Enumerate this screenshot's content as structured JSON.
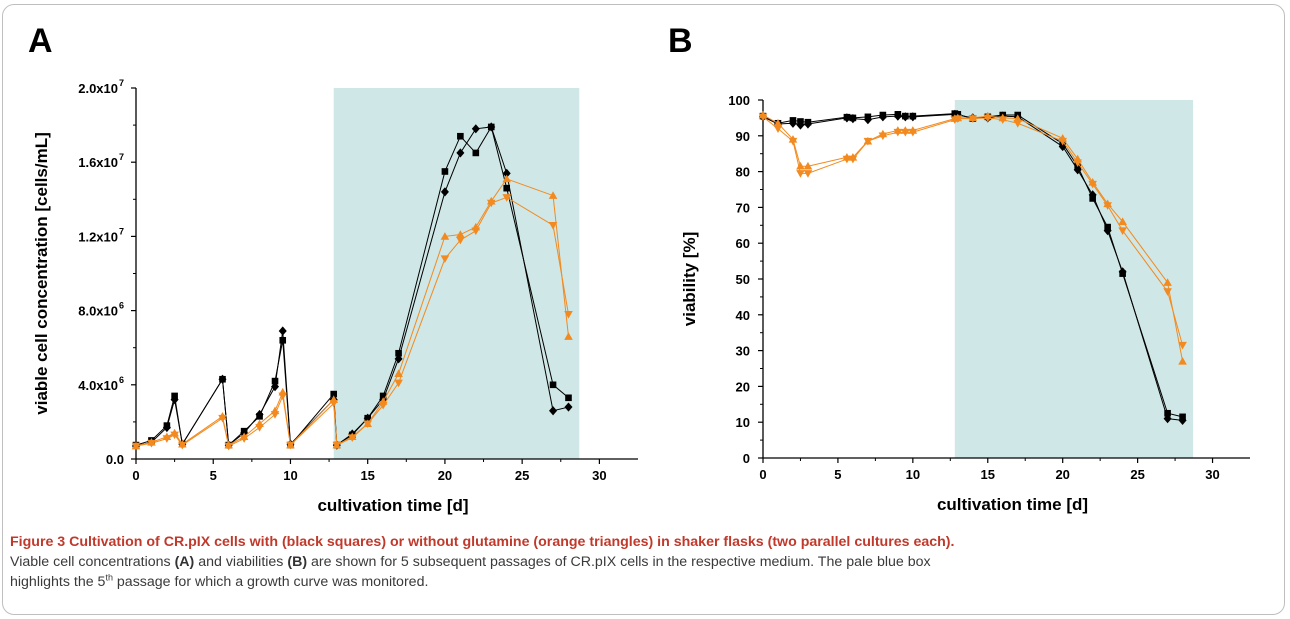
{
  "chart_data": [
    {
      "panel": "A",
      "type": "scatter",
      "xlabel": "cultivation time [d]",
      "ylabel": "viable cell concentration [cells/mL]",
      "xlim": [
        0,
        32.5
      ],
      "ylim": [
        0,
        20000000
      ],
      "xticks": [
        0,
        5,
        10,
        15,
        20,
        25,
        30
      ],
      "xtick_labels": [
        "0",
        "5",
        "10",
        "15",
        "20",
        "25",
        "30"
      ],
      "yticks": [
        0,
        4000000,
        8000000,
        12000000,
        16000000,
        20000000
      ],
      "ytick_labels": [
        "0.0",
        "4.0x10",
        "8.0x10",
        "1.2x10",
        "1.6x10",
        "2.0x10"
      ],
      "ytick_exps": [
        "",
        "6",
        "6",
        "7",
        "7",
        "7"
      ],
      "highlight": {
        "x0": 12.8,
        "x1": 28.7
      },
      "series": [
        {
          "color": "#000000",
          "marker": "square",
          "x": [
            0,
            1,
            2,
            2.5,
            3,
            5.6,
            6,
            7,
            8,
            9,
            9.5,
            10,
            12.8,
            13,
            14,
            15,
            16,
            17,
            20,
            21,
            22,
            23,
            24,
            27,
            28
          ],
          "y": [
            750000,
            1000000,
            1800000,
            3400000,
            800000,
            4300000,
            750000,
            1500000,
            2300000,
            4200000,
            6400000,
            750000,
            3500000,
            750000,
            1300000,
            2200000,
            3400000,
            5700000,
            15500000,
            17400000,
            16500000,
            17900000,
            14600000,
            4000000,
            3300000
          ]
        },
        {
          "color": "#000000",
          "marker": "diamond",
          "x": [
            0,
            1,
            2,
            2.5,
            3,
            5.6,
            6,
            7,
            8,
            9,
            9.5,
            10,
            12.8,
            13,
            14,
            15,
            16,
            17,
            20,
            21,
            22,
            23,
            24,
            27,
            28
          ],
          "y": [
            700000,
            900000,
            1700000,
            3200000,
            800000,
            4300000,
            750000,
            1400000,
            2400000,
            3900000,
            6900000,
            800000,
            3200000,
            750000,
            1350000,
            2200000,
            3200000,
            5400000,
            14400000,
            16500000,
            17800000,
            17900000,
            15400000,
            2600000,
            2800000
          ]
        },
        {
          "color": "#f28a1f",
          "marker": "triangle-up",
          "x": [
            0,
            1,
            2,
            2.5,
            3,
            5.6,
            6,
            7,
            8,
            9,
            9.5,
            10,
            12.8,
            13,
            14,
            15,
            16,
            17,
            20,
            21,
            22,
            23,
            24,
            27,
            28
          ],
          "y": [
            700000,
            900000,
            1200000,
            1400000,
            800000,
            2300000,
            750000,
            1200000,
            1900000,
            2600000,
            3600000,
            750000,
            3200000,
            750000,
            1200000,
            1900000,
            3100000,
            4600000,
            12000000,
            12100000,
            12500000,
            13900000,
            15100000,
            14200000,
            6600000
          ]
        },
        {
          "color": "#f28a1f",
          "marker": "triangle-down",
          "x": [
            0,
            1,
            2,
            2.5,
            3,
            5.6,
            6,
            7,
            8,
            9,
            9.5,
            10,
            12.8,
            13,
            14,
            15,
            16,
            17,
            20,
            21,
            22,
            23,
            24,
            27,
            28
          ],
          "y": [
            700000,
            850000,
            1100000,
            1300000,
            750000,
            2200000,
            700000,
            1100000,
            1700000,
            2400000,
            3400000,
            750000,
            3000000,
            750000,
            1150000,
            1900000,
            2900000,
            4100000,
            10800000,
            11800000,
            12300000,
            13800000,
            14100000,
            12600000,
            7800000
          ]
        }
      ]
    },
    {
      "panel": "B",
      "type": "scatter",
      "xlabel": "cultivation time [d]",
      "ylabel": "viability [%]",
      "xlim": [
        0,
        32.5
      ],
      "ylim": [
        0,
        100
      ],
      "xticks": [
        0,
        5,
        10,
        15,
        20,
        25,
        30
      ],
      "xtick_labels": [
        "0",
        "5",
        "10",
        "15",
        "20",
        "25",
        "30"
      ],
      "yticks": [
        0,
        10,
        20,
        30,
        40,
        50,
        60,
        70,
        80,
        90,
        100
      ],
      "ytick_labels": [
        "0",
        "10",
        "20",
        "30",
        "40",
        "50",
        "60",
        "70",
        "80",
        "90",
        "100"
      ],
      "highlight": {
        "x0": 12.8,
        "x1": 28.7
      },
      "series": [
        {
          "color": "#000000",
          "marker": "square",
          "x": [
            0,
            1,
            2,
            2.5,
            3,
            5.6,
            6,
            7,
            8,
            9,
            9.5,
            10,
            12.8,
            13,
            14,
            15,
            16,
            17,
            20,
            21,
            22,
            23,
            24,
            27,
            28
          ],
          "y": [
            95.5,
            93.5,
            94.3,
            94,
            93.8,
            95.2,
            95,
            95.3,
            95.8,
            96,
            95.5,
            95.5,
            96.2,
            96,
            94.8,
            95.3,
            95.8,
            95.8,
            87.8,
            81.5,
            72.5,
            64.5,
            51.5,
            12.5,
            11.5
          ]
        },
        {
          "color": "#000000",
          "marker": "diamond",
          "x": [
            0,
            1,
            2,
            2.5,
            3,
            5.6,
            6,
            7,
            8,
            9,
            9.5,
            10,
            12.8,
            13,
            14,
            15,
            16,
            17,
            20,
            21,
            22,
            23,
            24,
            27,
            28
          ],
          "y": [
            95.3,
            93.3,
            93.5,
            93,
            93.3,
            95,
            94.8,
            94.5,
            95.3,
            95.5,
            95.3,
            95.3,
            96,
            95.8,
            95,
            95,
            95.5,
            95.3,
            87,
            80.5,
            73.5,
            63.5,
            52,
            11,
            10.5
          ]
        },
        {
          "color": "#f28a1f",
          "marker": "triangle-up",
          "x": [
            0,
            1,
            2,
            2.5,
            3,
            5.6,
            6,
            7,
            8,
            9,
            9.5,
            10,
            12.8,
            13,
            14,
            15,
            16,
            17,
            20,
            21,
            22,
            23,
            24,
            27,
            28
          ],
          "y": [
            95.8,
            93.5,
            89,
            81.5,
            81.5,
            84,
            84,
            88.5,
            90.5,
            91.5,
            91.5,
            91.5,
            94.8,
            95,
            95,
            95.5,
            95,
            94.8,
            89.3,
            83.5,
            77,
            71,
            66,
            49,
            27
          ]
        },
        {
          "color": "#f28a1f",
          "marker": "triangle-down",
          "x": [
            0,
            1,
            2,
            2.5,
            3,
            5.6,
            6,
            7,
            8,
            9,
            9.5,
            10,
            12.8,
            13,
            14,
            15,
            16,
            17,
            20,
            21,
            22,
            23,
            24,
            27,
            28
          ],
          "y": [
            95.3,
            92,
            88.5,
            79.5,
            79.5,
            83.5,
            83.5,
            88.5,
            90,
            91,
            91,
            91,
            94.5,
            94.8,
            94.8,
            95,
            94.5,
            93.5,
            88.5,
            82.5,
            76.5,
            70.5,
            63.5,
            46.5,
            31.5
          ]
        }
      ]
    }
  ],
  "caption": {
    "title": "Figure 3 Cultivation of CR.pIX cells with (black squares) or without glutamine (orange triangles) in shaker flasks (two parallel cultures each).",
    "line1_pre": "Viable cell concentrations ",
    "line1_a": "(A)",
    "line1_mid": " and viabilities ",
    "line1_b": "(B)",
    "line1_post": " are shown for 5 subsequent passages of CR.pIX cells in the respective medium. The pale blue box",
    "line2_pre": "highlights the 5",
    "line2_sup": "th",
    "line2_post": " passage for which a growth curve was monitored."
  },
  "colors": {
    "highlight_box": "#cfe7e6",
    "black_series": "#000000",
    "orange_series": "#f28a1f"
  }
}
